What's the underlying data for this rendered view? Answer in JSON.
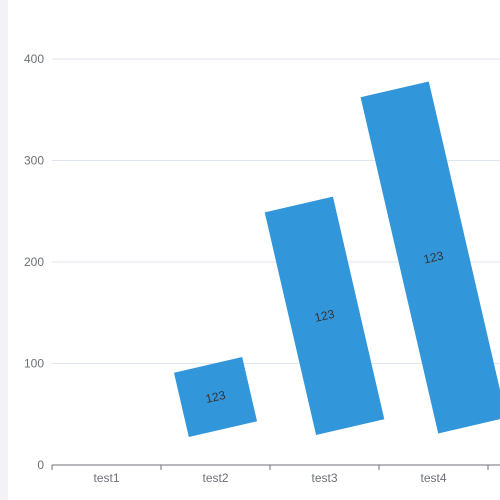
{
  "chart_data": {
    "type": "bar",
    "categories": [
      "test1",
      "test2",
      "test3",
      "test4"
    ],
    "values": [
      0,
      65,
      225,
      340
    ],
    "ylim": [
      0,
      450
    ],
    "yticks": [
      0,
      100,
      200,
      300,
      400
    ],
    "grid": true,
    "bar_color": "#3296db",
    "bar_rotation_deg": -13,
    "data_label": "123",
    "title": "",
    "xlabel": "",
    "ylabel": ""
  }
}
